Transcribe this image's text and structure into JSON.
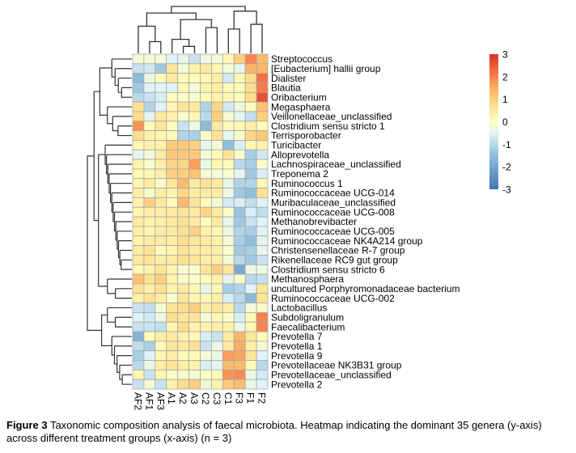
{
  "chart_data": {
    "type": "heatmap",
    "title": "",
    "xlabel": "treatment groups",
    "ylabel": "genera",
    "columns": [
      "AF2",
      "AF1",
      "AF3",
      "A1",
      "A2",
      "A3",
      "C2",
      "C3",
      "C1",
      "F3",
      "F1",
      "F2"
    ],
    "rows": [
      "Streptococcus",
      "[Eubacterium] hallii group",
      "Dialister",
      "Blautia",
      "Oribacterium",
      "Megasphaera",
      "Veillonellaceae_unclassified",
      "Clostridium sensu stricto 1",
      "Terrisporobacter",
      "Turicibacter",
      "Alloprevotella",
      "Lachnospiraceae_unclassified",
      "Treponema 2",
      "Ruminococcus 1",
      "Ruminococcaceae UCG-014",
      "Muribaculaceae_unclassified",
      "Ruminococcaceae UCG-008",
      "Methanobrevibacter",
      "Ruminococcaceae UCG-005",
      "Ruminococcaceae NK4A214 group",
      "Christensenellaceae R-7 group",
      "Rikenellaceae RC9 gut group",
      "Clostridium sensu stricto 6",
      "Methanosphaera",
      "uncultured Porphyromonadaceae bacterium",
      "Ruminococcaceae UCG-002",
      "Lactobacillus",
      "Subdoligranulum",
      "Faecalibacterium",
      "Prevotella 7",
      "Prevotella 1",
      "Prevotella 9",
      "Prevotellaceae NK3B31 group",
      "Prevotellaceae_unclassified",
      "Prevotella 2"
    ],
    "values": [
      [
        -0.2,
        -0.2,
        -0.2,
        -0.5,
        -0.4,
        -0.8,
        -0.3,
        -0.2,
        0.2,
        1.0,
        2.0,
        1.3
      ],
      [
        -0.8,
        -0.7,
        -1.3,
        0.6,
        -0.2,
        0.3,
        0.5,
        0.2,
        -0.2,
        -0.4,
        1.4,
        1.4
      ],
      [
        -1.6,
        -0.3,
        0.1,
        0.5,
        0.1,
        0.1,
        0.2,
        0.4,
        -0.7,
        0.2,
        0.8,
        2.2
      ],
      [
        -1.3,
        -0.5,
        -0.5,
        -0.5,
        0.1,
        -0.2,
        0.3,
        0.4,
        0.1,
        0.1,
        0.8,
        2.1
      ],
      [
        -1.0,
        -0.8,
        -0.6,
        0.1,
        -0.1,
        -0.1,
        0.1,
        0.3,
        0.2,
        0.1,
        0.8,
        2.6
      ],
      [
        0.7,
        -1.1,
        -0.5,
        0.2,
        0.6,
        0.5,
        -1.1,
        0.9,
        -0.7,
        -0.3,
        0.1,
        1.2
      ],
      [
        0.8,
        -0.4,
        0.5,
        0.3,
        -0.1,
        0.2,
        -1.0,
        1.0,
        -0.2,
        -0.4,
        -0.9,
        1.0
      ],
      [
        1.8,
        0.1,
        0.6,
        0.1,
        -0.8,
        -0.3,
        -1.6,
        0.5,
        0.1,
        0.2,
        0.4,
        0.1
      ],
      [
        0.8,
        0.3,
        0.2,
        0.1,
        -1.1,
        -1.2,
        -0.1,
        0.7,
        -0.4,
        -0.1,
        0.9,
        1.1
      ],
      [
        0.2,
        0.3,
        0.3,
        1.1,
        1.1,
        1.0,
        -0.4,
        -0.2,
        -1.5,
        -0.6,
        0.2,
        0.3
      ],
      [
        -0.4,
        -0.2,
        0.5,
        1.1,
        1.1,
        1.1,
        -0.2,
        0.1,
        0.6,
        -0.1,
        -1.2,
        -0.7
      ],
      [
        0.3,
        -0.1,
        0.4,
        0.9,
        0.9,
        1.7,
        -0.3,
        0.2,
        0.1,
        -1.0,
        -1.2,
        -0.1
      ],
      [
        0.2,
        0.2,
        0.4,
        1.0,
        1.0,
        1.2,
        -0.2,
        -0.2,
        -0.1,
        -0.4,
        -1.3,
        -0.6
      ],
      [
        0.2,
        0.5,
        -0.1,
        0.6,
        1.3,
        0.5,
        0.7,
        0.5,
        -0.4,
        -1.1,
        -1.1,
        0.2
      ],
      [
        0.4,
        -0.1,
        0.4,
        0.3,
        0.9,
        0.5,
        0.5,
        0.5,
        -0.3,
        -1.3,
        -1.5,
        0.7
      ],
      [
        0.3,
        1.0,
        0.5,
        0.1,
        1.3,
        0.6,
        0.1,
        -0.2,
        -0.7,
        -0.6,
        -0.9,
        -0.5
      ],
      [
        0.2,
        0.4,
        0.4,
        0.5,
        0.6,
        0.5,
        0.9,
        0.5,
        -0.1,
        -1.4,
        -0.6,
        -0.9
      ],
      [
        0.5,
        0.3,
        0.4,
        0.5,
        0.7,
        0.5,
        0.1,
        0.5,
        -0.4,
        -1.3,
        -0.8,
        -0.5
      ],
      [
        0.4,
        0.2,
        0.4,
        0.5,
        0.7,
        1.0,
        0.3,
        0.2,
        -0.3,
        -1.1,
        -1.2,
        -0.5
      ],
      [
        0.3,
        0.5,
        0.5,
        0.4,
        0.8,
        0.6,
        0.5,
        0.3,
        -0.2,
        -1.2,
        -1.5,
        -0.4
      ],
      [
        0.5,
        0.7,
        0.1,
        0.3,
        0.7,
        0.5,
        0.5,
        0.4,
        -0.1,
        -1.3,
        -1.2,
        -0.4
      ],
      [
        0.5,
        0.6,
        0.4,
        0.5,
        0.7,
        0.6,
        0.4,
        0.4,
        -0.2,
        -1.0,
        -1.3,
        -0.8
      ],
      [
        0.2,
        0.3,
        0.6,
        0.3,
        -0.1,
        -0.1,
        0.6,
        1.0,
        0.6,
        -1.9,
        -0.3,
        -0.3
      ],
      [
        1.2,
        0.7,
        1.0,
        0.3,
        -0.1,
        -0.1,
        0.1,
        0.3,
        -0.4,
        -0.1,
        -1.0,
        -0.9
      ],
      [
        0.7,
        0.4,
        0.7,
        0.3,
        0.5,
        0.2,
        -0.4,
        0.2,
        -1.2,
        -1.1,
        -0.5,
        0.6
      ],
      [
        0.4,
        0.7,
        0.4,
        -0.1,
        0.6,
        0.2,
        0.2,
        0.4,
        -0.6,
        -1.0,
        -1.6,
        0.6
      ],
      [
        -0.8,
        -0.9,
        -0.2,
        0.6,
        0.8,
        1.0,
        0.4,
        0.6,
        0.4,
        -1.0,
        -0.2,
        -0.1
      ],
      [
        -0.5,
        -0.7,
        -0.3,
        0.8,
        0.6,
        0.6,
        -0.2,
        0.2,
        -0.1,
        -0.6,
        0.2,
        2.0
      ],
      [
        -0.8,
        -0.8,
        -0.9,
        0.2,
        0.8,
        0.3,
        0.3,
        0.4,
        0.3,
        -0.3,
        0.2,
        2.0
      ],
      [
        -1.7,
        0.1,
        0.4,
        0.5,
        0.3,
        0.2,
        -0.6,
        -0.8,
        0.5,
        1.4,
        0.6,
        0.1
      ],
      [
        -0.9,
        -1.2,
        0.1,
        0.6,
        0.5,
        0.7,
        -0.8,
        -0.3,
        0.5,
        1.5,
        0.4,
        -0.2
      ],
      [
        -1.2,
        -0.5,
        0.2,
        0.4,
        0.1,
        0.1,
        -0.2,
        -0.3,
        1.7,
        1.6,
        0.6,
        -0.5
      ],
      [
        -1.0,
        -0.3,
        0.4,
        0.6,
        0.4,
        0.3,
        -0.6,
        -0.4,
        1.3,
        1.3,
        0.1,
        -1.0
      ],
      [
        0.2,
        -0.8,
        0.2,
        -0.1,
        -0.1,
        -0.2,
        0.0,
        0.1,
        1.8,
        1.9,
        -0.3,
        -0.7
      ],
      [
        -0.8,
        -0.2,
        -0.8,
        0.3,
        0.8,
        1.0,
        -0.2,
        0.3,
        1.1,
        1.3,
        -0.3,
        -0.5
      ]
    ],
    "color_scale": {
      "range": [
        -3,
        3
      ],
      "ticks": [
        "3",
        "2",
        "1",
        "0",
        "-1",
        "-2",
        "-3"
      ],
      "tick_values": [
        3,
        2,
        1,
        0,
        -1,
        -2,
        -3
      ],
      "stops": [
        {
          "value": -3,
          "color": "#4575b4"
        },
        {
          "value": -1.5,
          "color": "#91bfdb"
        },
        {
          "value": -0.5,
          "color": "#e0f3f8"
        },
        {
          "value": 0,
          "color": "#ffffbf"
        },
        {
          "value": 0.75,
          "color": "#fee090"
        },
        {
          "value": 1.5,
          "color": "#fdae61"
        },
        {
          "value": 2.25,
          "color": "#f46d43"
        },
        {
          "value": 3,
          "color": "#d73027"
        }
      ],
      "legend_position": "right"
    },
    "column_dendrogram": {
      "merges": [
        {
          "a": 1,
          "b": 2,
          "h": 0.25
        },
        {
          "a": 4,
          "b": 5,
          "h": 0.15
        },
        {
          "a": 3,
          "b": "m1",
          "h": 0.3
        },
        {
          "a": 6,
          "b": 7,
          "h": 0.55
        },
        {
          "a": 0,
          "b": "m0",
          "h": 0.58
        },
        {
          "a": "m2",
          "b": "m3",
          "h": 0.72
        },
        {
          "a": 10,
          "b": 11,
          "h": 0.62
        },
        {
          "a": 8,
          "b": 9,
          "h": 0.52
        },
        {
          "a": "m4",
          "b": "m5",
          "h": 0.86
        },
        {
          "a": "m7",
          "b": "m6",
          "h": 0.9
        },
        {
          "a": "m8",
          "b": "m9",
          "h": 1.0
        }
      ]
    },
    "row_dendrogram_groups": [
      {
        "rows": [
          0,
          1,
          2,
          3,
          4
        ],
        "h": 0.45
      },
      {
        "rows": [
          5,
          6,
          7,
          8
        ],
        "h": 0.55
      },
      {
        "rows": [
          9,
          10,
          11,
          12,
          13,
          14,
          15,
          16,
          17,
          18,
          19,
          20,
          21,
          22
        ],
        "h": 0.6
      },
      {
        "rows": [
          23,
          24,
          25
        ],
        "h": 0.55
      },
      {
        "rows": [
          26,
          27,
          28
        ],
        "h": 0.55
      },
      {
        "rows": [
          29,
          30,
          31,
          32,
          33,
          34
        ],
        "h": 0.45
      }
    ]
  },
  "caption": {
    "label": "Figure 3",
    "text": " Taxonomic composition analysis of faecal microbiota. Heatmap indicating the dominant 35 genera (y-axis) across different treatment groups (x-axis) (n = 3)"
  }
}
